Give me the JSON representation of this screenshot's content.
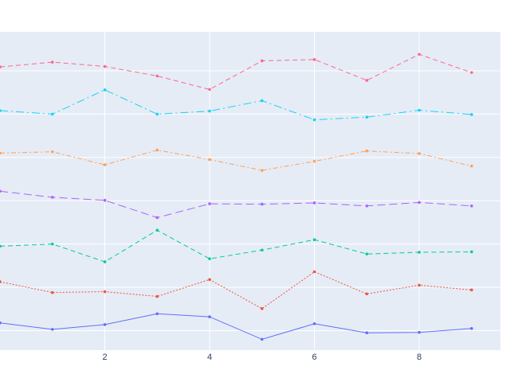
{
  "chart_data": {
    "type": "line",
    "title": "",
    "xlabel": "",
    "ylabel": "",
    "xlim": [
      0,
      9.55
    ],
    "ylim": [
      -0.45,
      6.9
    ],
    "x_ticks": [
      2,
      4,
      6,
      8
    ],
    "x_tick_labels": [
      "2",
      "4",
      "6",
      "8"
    ],
    "grid": true,
    "legend": "none",
    "x": [
      0,
      1,
      2,
      3,
      4,
      5,
      6,
      7,
      8,
      9
    ],
    "series": [
      {
        "color": "#636efa",
        "dash": "solid",
        "values": [
          0.18,
          0.03,
          0.14,
          0.39,
          0.32,
          -0.2,
          0.16,
          -0.05,
          -0.04,
          0.05
        ]
      },
      {
        "color": "#ef553b",
        "dash": "dot",
        "values": [
          1.13,
          0.88,
          0.9,
          0.79,
          1.18,
          0.51,
          1.36,
          0.85,
          1.05,
          0.94
        ]
      },
      {
        "color": "#00cc96",
        "dash": "dash",
        "values": [
          1.95,
          2.0,
          1.59,
          2.32,
          1.66,
          1.86,
          2.1,
          1.77,
          1.81,
          1.82
        ]
      },
      {
        "color": "#ab63fa",
        "dash": "longdash",
        "values": [
          3.22,
          3.08,
          3.01,
          2.61,
          2.93,
          2.92,
          2.95,
          2.88,
          2.96,
          2.88
        ]
      },
      {
        "color": "#ffa15a",
        "dash": "dashdot",
        "values": [
          4.1,
          4.13,
          3.83,
          4.17,
          3.95,
          3.7,
          3.91,
          4.15,
          4.09,
          3.8
        ]
      },
      {
        "color": "#19d3f3",
        "dash": "longdashdot",
        "values": [
          5.08,
          5.0,
          5.56,
          5.0,
          5.07,
          5.31,
          4.87,
          4.93,
          5.09,
          4.99
        ]
      },
      {
        "color": "#ff6692",
        "dash": "dash",
        "values": [
          6.09,
          6.2,
          6.1,
          5.88,
          5.57,
          6.23,
          6.26,
          5.78,
          6.38,
          5.96
        ]
      }
    ]
  }
}
